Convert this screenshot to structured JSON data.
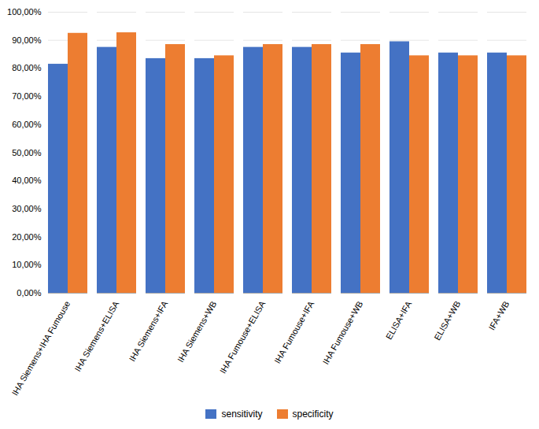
{
  "chart_data": {
    "type": "bar",
    "categories": [
      "IHA Siemens+IHA Fumouse",
      "IHA Siemens+ELISA",
      "IHA Siemens+IFA",
      "IHA Siemens+WB",
      "IHA Fumouse+ELISA",
      "IHA Fumouse+IFA",
      "IHA Fumouse+WB",
      "ELISA+IFA",
      "ELISA+WB",
      "IFA+WB"
    ],
    "series": [
      {
        "name": "sensitivity",
        "color": "#4472C4",
        "values": [
          0.815,
          0.875,
          0.835,
          0.835,
          0.875,
          0.875,
          0.855,
          0.895,
          0.855,
          0.855
        ]
      },
      {
        "name": "specificity",
        "color": "#ED7D31",
        "values": [
          0.925,
          0.927,
          0.885,
          0.845,
          0.885,
          0.885,
          0.885,
          0.845,
          0.845,
          0.845
        ]
      }
    ],
    "ylim": [
      0,
      1.0
    ],
    "yticks": [
      {
        "value": 0.0,
        "label": "0,00%"
      },
      {
        "value": 0.1,
        "label": "10,00%"
      },
      {
        "value": 0.2,
        "label": "20,00%"
      },
      {
        "value": 0.3,
        "label": "30,00%"
      },
      {
        "value": 0.4,
        "label": "40,00%"
      },
      {
        "value": 0.5,
        "label": "50,00%"
      },
      {
        "value": 0.6,
        "label": "60,00%"
      },
      {
        "value": 0.7,
        "label": "70,00%"
      },
      {
        "value": 0.8,
        "label": "80,00%"
      },
      {
        "value": 0.9,
        "label": "90,00%"
      },
      {
        "value": 1.0,
        "label": "100,00%"
      }
    ],
    "grid": true,
    "legend": "bottom"
  }
}
